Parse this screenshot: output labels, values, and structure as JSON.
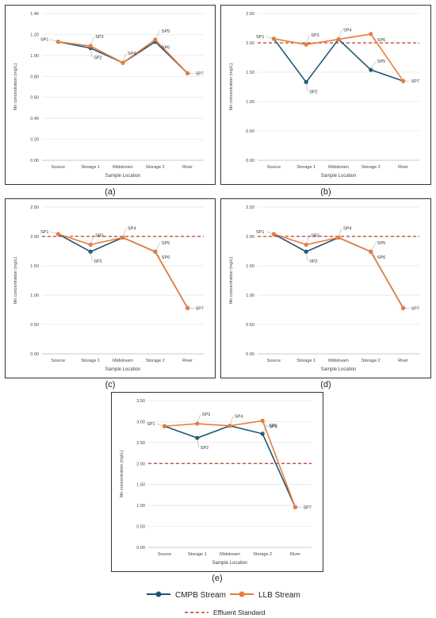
{
  "chart_data": [
    {
      "type": "line",
      "caption": "(a)",
      "xlabel": "Sample Location",
      "ylabel": "Mn concentration (mg/L)",
      "categories": [
        "Source",
        "Storage 1",
        "Midstream",
        "Storage 2",
        "River"
      ],
      "ylim": [
        0,
        1.4
      ],
      "yticks": [
        "0.00",
        "0.20",
        "0.40",
        "0.60",
        "0.80",
        "1.00",
        "1.20",
        "1.40"
      ],
      "effluent_standard": null,
      "series": [
        {
          "name": "CMPB Stream",
          "color": "#1f5673",
          "values": [
            1.13,
            1.07,
            0.93,
            1.13,
            0.83
          ]
        },
        {
          "name": "LLB Stream",
          "color": "#e97c3a",
          "values": [
            1.13,
            1.09,
            0.93,
            1.15,
            0.83
          ]
        }
      ],
      "annotations": [
        {
          "text": "SP1",
          "ci": 0,
          "y": 1.13
        },
        {
          "text": "SP2",
          "ci": 1,
          "y": 1.07
        },
        {
          "text": "SP3",
          "ci": 1,
          "y": 1.09
        },
        {
          "text": "SP4",
          "ci": 2,
          "y": 0.93
        },
        {
          "text": "SP5",
          "ci": 3,
          "y": 1.15
        },
        {
          "text": "SP6",
          "ci": 3,
          "y": 1.13
        },
        {
          "text": "SP7",
          "ci": 4,
          "y": 0.83
        }
      ]
    },
    {
      "type": "line",
      "caption": "(b)",
      "xlabel": "Sample Location",
      "ylabel": "Mn concentration (mg/L)",
      "categories": [
        "Source",
        "Storage 1",
        "Midstream",
        "Storage 2",
        "River"
      ],
      "ylim": [
        0,
        2.5
      ],
      "yticks": [
        "0.00",
        "0.50",
        "1.00",
        "1.50",
        "2.00",
        "2.50"
      ],
      "effluent_standard": 2.0,
      "series": [
        {
          "name": "CMPB Stream",
          "color": "#1f5673",
          "values": [
            2.07,
            1.33,
            2.06,
            1.54,
            1.35
          ]
        },
        {
          "name": "LLB Stream",
          "color": "#e97c3a",
          "values": [
            2.07,
            1.97,
            2.06,
            2.15,
            1.35
          ]
        }
      ],
      "annotations": [
        {
          "text": "SP1",
          "ci": 0,
          "y": 2.07
        },
        {
          "text": "SP2",
          "ci": 1,
          "y": 1.33
        },
        {
          "text": "SP3",
          "ci": 1,
          "y": 1.97
        },
        {
          "text": "SP4",
          "ci": 2,
          "y": 2.06
        },
        {
          "text": "SP5",
          "ci": 3,
          "y": 1.54
        },
        {
          "text": "SP6",
          "ci": 3,
          "y": 2.15
        },
        {
          "text": "SP7",
          "ci": 4,
          "y": 1.35
        }
      ]
    },
    {
      "type": "line",
      "caption": "(c)",
      "xlabel": "Sample Location",
      "ylabel": "Mn concentration (mg/L)",
      "categories": [
        "Source",
        "Storage 1",
        "Midstream",
        "Storage 2",
        "River"
      ],
      "ylim": [
        0,
        2.5
      ],
      "yticks": [
        "0.00",
        "0.50",
        "1.00",
        "1.50",
        "2.00",
        "2.50"
      ],
      "effluent_standard": 2.0,
      "series": [
        {
          "name": "CMPB Stream",
          "color": "#1f5673",
          "values": [
            2.04,
            1.74,
            1.98,
            1.74,
            0.78
          ]
        },
        {
          "name": "LLB Stream",
          "color": "#e97c3a",
          "values": [
            2.04,
            1.86,
            1.98,
            1.74,
            0.78
          ]
        }
      ],
      "annotations": [
        {
          "text": "SP1",
          "ci": 0,
          "y": 2.04
        },
        {
          "text": "SP2",
          "ci": 1,
          "y": 1.74
        },
        {
          "text": "SP3",
          "ci": 1,
          "y": 1.86
        },
        {
          "text": "SP4",
          "ci": 2,
          "y": 1.98
        },
        {
          "text": "SP5",
          "ci": 3,
          "y": 1.74
        },
        {
          "text": "SP6",
          "ci": 3,
          "y": 1.74
        },
        {
          "text": "SP7",
          "ci": 4,
          "y": 0.78
        }
      ]
    },
    {
      "type": "line",
      "caption": "(d)",
      "xlabel": "Sample Location",
      "ylabel": "Mn concentration (mg/L)",
      "categories": [
        "Source",
        "Storage 1",
        "Midstream",
        "Storage 2",
        "River"
      ],
      "ylim": [
        0,
        2.5
      ],
      "yticks": [
        "0.00",
        "0.50",
        "1.00",
        "1.50",
        "2.00",
        "2.50"
      ],
      "effluent_standard": 2.0,
      "series": [
        {
          "name": "CMPB Stream",
          "color": "#1f5673",
          "values": [
            2.04,
            1.74,
            1.98,
            1.74,
            0.78
          ]
        },
        {
          "name": "LLB Stream",
          "color": "#e97c3a",
          "values": [
            2.04,
            1.86,
            1.98,
            1.74,
            0.78
          ]
        }
      ],
      "annotations": [
        {
          "text": "SP1",
          "ci": 0,
          "y": 2.04
        },
        {
          "text": "SP2",
          "ci": 1,
          "y": 1.74
        },
        {
          "text": "SP3",
          "ci": 1,
          "y": 1.86
        },
        {
          "text": "SP4",
          "ci": 2,
          "y": 1.98
        },
        {
          "text": "SP5",
          "ci": 3,
          "y": 1.74
        },
        {
          "text": "SP6",
          "ci": 3,
          "y": 1.74
        },
        {
          "text": "SP7",
          "ci": 4,
          "y": 0.78
        }
      ]
    },
    {
      "type": "line",
      "caption": "(e)",
      "xlabel": "Sample Location",
      "ylabel": "Mn concentration (mg/L)",
      "categories": [
        "Source",
        "Storage 1",
        "Midstream",
        "Storage 2",
        "River"
      ],
      "ylim": [
        0,
        3.5
      ],
      "yticks": [
        "0.00",
        "0.50",
        "1.00",
        "1.50",
        "2.00",
        "2.50",
        "3.00",
        "3.50"
      ],
      "effluent_standard": 2.0,
      "series": [
        {
          "name": "CMPB Stream",
          "color": "#1f5673",
          "values": [
            2.89,
            2.61,
            2.9,
            2.71,
            0.96
          ]
        },
        {
          "name": "LLB Stream",
          "color": "#e97c3a",
          "values": [
            2.89,
            2.95,
            2.9,
            3.02,
            0.96
          ]
        }
      ],
      "annotations": [
        {
          "text": "SP1",
          "ci": 0,
          "y": 2.89
        },
        {
          "text": "SP2",
          "ci": 1,
          "y": 2.61
        },
        {
          "text": "SP3",
          "ci": 1,
          "y": 2.95
        },
        {
          "text": "SP4",
          "ci": 2,
          "y": 2.9
        },
        {
          "text": "SP5",
          "ci": 3,
          "y": 2.71
        },
        {
          "text": "SP6",
          "ci": 3,
          "y": 3.02
        },
        {
          "text": "SP7",
          "ci": 4,
          "y": 0.96
        }
      ]
    }
  ],
  "legend": {
    "items": [
      {
        "label": "CMPB Stream",
        "color": "#1f5673",
        "style": "line-marker"
      },
      {
        "label": "LLB Stream",
        "color": "#e97c3a",
        "style": "line-marker"
      },
      {
        "label": "Effluent Standard",
        "color": "#c0392b",
        "style": "dashed"
      }
    ]
  }
}
